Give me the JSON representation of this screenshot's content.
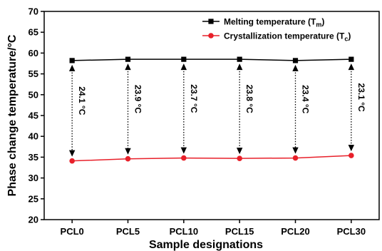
{
  "chart_data": {
    "type": "line",
    "categories": [
      "PCL0",
      "PCL5",
      "PCL10",
      "PCL15",
      "PCL20",
      "PCL30"
    ],
    "xlabel": "Sample designations",
    "ylabel": "Phase change temperature/°C",
    "ylim": [
      20,
      70
    ],
    "yticks": [
      20,
      25,
      30,
      35,
      40,
      45,
      50,
      55,
      60,
      65,
      70
    ],
    "grid": false,
    "legend_position": "top-right",
    "series": [
      {
        "name": "Melting temperature (T",
        "name_subscript": "m",
        "name_suffix": ")",
        "color": "#000000",
        "marker": "square",
        "values": [
          58.2,
          58.5,
          58.5,
          58.5,
          58.2,
          58.5
        ]
      },
      {
        "name": "Crystallization temperature (T",
        "name_subscript": "c",
        "name_suffix": ")",
        "color": "#e8202a",
        "marker": "circle",
        "values": [
          34.1,
          34.6,
          34.8,
          34.7,
          34.8,
          35.4
        ]
      }
    ],
    "annotations": [
      {
        "category": "PCL0",
        "label": "24.1 °C"
      },
      {
        "category": "PCL5",
        "label": "23.9 °C"
      },
      {
        "category": "PCL10",
        "label": "23.7 °C"
      },
      {
        "category": "PCL15",
        "label": "23.8 °C"
      },
      {
        "category": "PCL20",
        "label": "23.4 °C"
      },
      {
        "category": "PCL30",
        "label": "23.1 °C"
      }
    ]
  }
}
